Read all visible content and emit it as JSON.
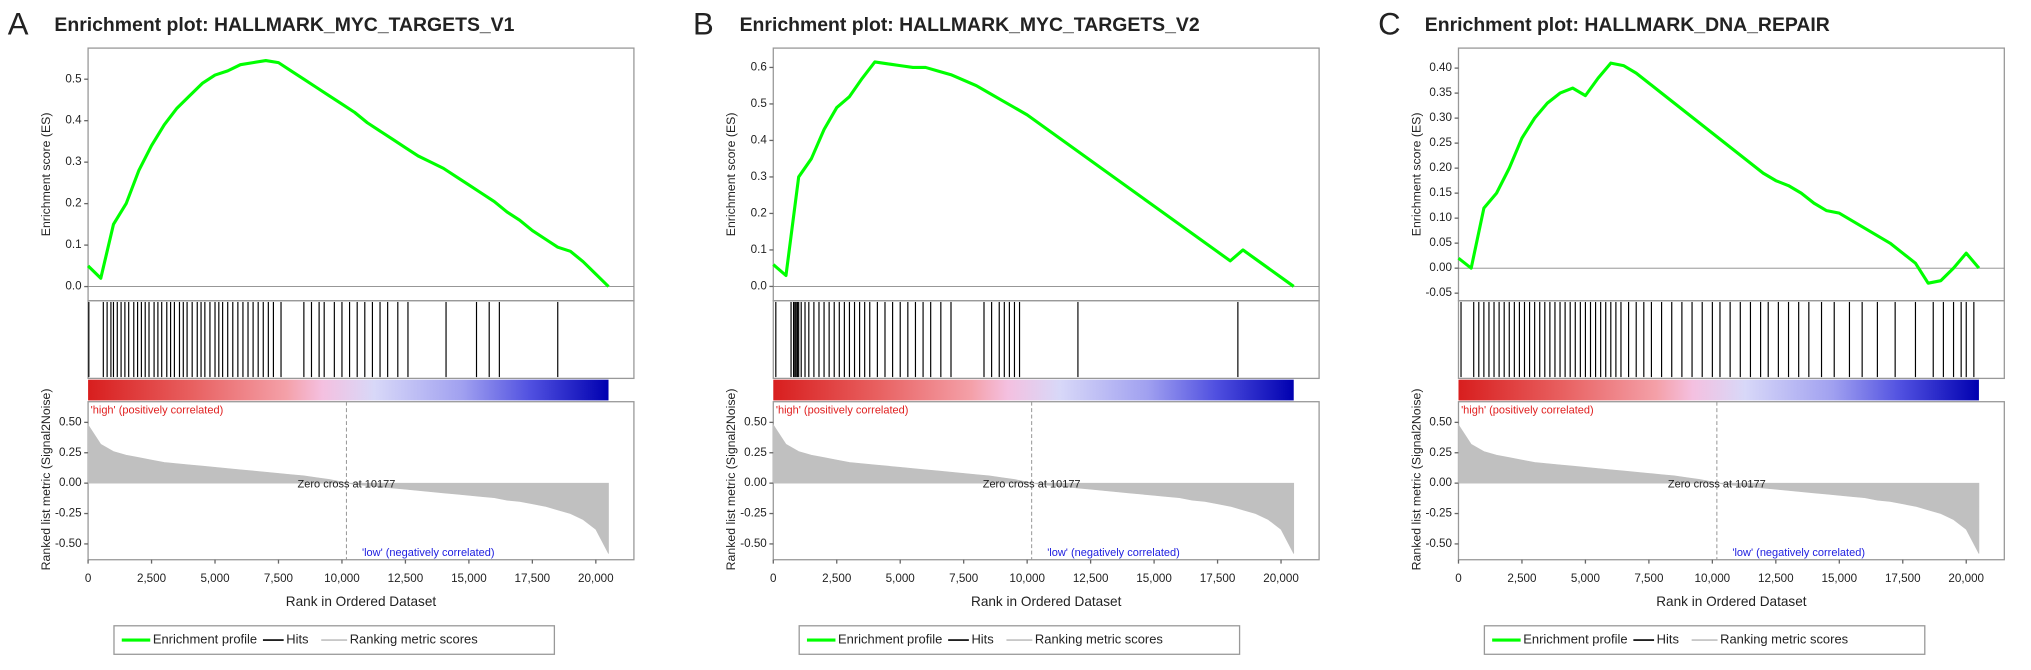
{
  "chart_data": [
    {
      "type": "gsea",
      "panel": "A",
      "title": "Enrichment plot: HALLMARK_MYC_TARGETS_V1",
      "x": [
        0,
        500,
        1000,
        1500,
        2000,
        2500,
        3000,
        3500,
        4000,
        4500,
        5000,
        5500,
        6000,
        6500,
        7000,
        7500,
        8000,
        8500,
        9000,
        9500,
        10000,
        10500,
        11000,
        11500,
        12000,
        12500,
        13000,
        13500,
        14000,
        14500,
        15000,
        15500,
        16000,
        16500,
        17000,
        17500,
        18000,
        18500,
        19000,
        19500,
        20000,
        20500
      ],
      "series": [
        {
          "name": "Enrichment profile",
          "color": "#00ff00",
          "values": [
            0.05,
            0.02,
            0.15,
            0.2,
            0.28,
            0.34,
            0.39,
            0.43,
            0.46,
            0.49,
            0.51,
            0.52,
            0.535,
            0.54,
            0.545,
            0.54,
            0.52,
            0.5,
            0.48,
            0.46,
            0.44,
            0.42,
            0.395,
            0.375,
            0.355,
            0.335,
            0.315,
            0.3,
            0.285,
            0.265,
            0.245,
            0.225,
            0.205,
            0.18,
            0.16,
            0.135,
            0.115,
            0.095,
            0.085,
            0.06,
            0.03,
            0.0
          ]
        }
      ],
      "ylabel": "Enrichment score (ES)",
      "ylim": [
        -0.034,
        0.575
      ],
      "yticks": [
        {
          "value": 0,
          "label": "0.0"
        },
        0.1,
        0.2,
        0.3,
        0.4,
        0.5
      ],
      "hits": {
        "name": "Hits",
        "color": "#000000",
        "x": [
          30,
          600,
          750,
          900,
          1000,
          1150,
          1300,
          1450,
          1600,
          1800,
          1950,
          2100,
          2250,
          2400,
          2600,
          2750,
          2900,
          3100,
          3250,
          3400,
          3600,
          3750,
          3900,
          4100,
          4300,
          4450,
          4600,
          4800,
          5000,
          5150,
          5300,
          5500,
          5700,
          5900,
          6100,
          6300,
          6500,
          6700,
          6900,
          7100,
          7300,
          7600,
          8500,
          8800,
          9100,
          9300,
          9700,
          10000,
          10300,
          10600,
          10900,
          11200,
          11500,
          11800,
          12200,
          12600,
          14100,
          15300,
          15800,
          16200,
          18500
        ]
      },
      "metric": {
        "name": "Ranking metric scores",
        "color": "#c0c0c0",
        "x": [
          0,
          500,
          1000,
          1500,
          2000,
          2500,
          3000,
          3500,
          4000,
          4500,
          5000,
          5500,
          6000,
          6500,
          7000,
          7500,
          8000,
          8500,
          9000,
          9500,
          10000,
          10500,
          11000,
          11500,
          12000,
          12500,
          13000,
          13500,
          14000,
          14500,
          15000,
          15500,
          16000,
          16500,
          17000,
          17500,
          18000,
          18500,
          19000,
          19500,
          20000,
          20500
        ],
        "values": [
          0.48,
          0.32,
          0.26,
          0.23,
          0.21,
          0.19,
          0.17,
          0.16,
          0.15,
          0.14,
          0.13,
          0.12,
          0.11,
          0.1,
          0.09,
          0.08,
          0.07,
          0.06,
          0.045,
          0.03,
          0.01,
          -0.01,
          -0.02,
          -0.03,
          -0.04,
          -0.05,
          -0.06,
          -0.07,
          -0.08,
          -0.09,
          -0.1,
          -0.11,
          -0.12,
          -0.14,
          -0.15,
          -0.17,
          -0.19,
          -0.22,
          -0.25,
          -0.3,
          -0.38,
          -0.58
        ],
        "ylabel": "Ranked list metric (Signal2Noise)",
        "ylim": [
          -0.63,
          0.67
        ],
        "yticks": [
          {
            "value": 0.5,
            "label": "0.50"
          },
          {
            "value": 0.25,
            "label": "0.25"
          },
          {
            "value": 0,
            "label": "0.00"
          },
          {
            "value": -0.25,
            "label": "-0.25"
          },
          {
            "value": -0.5,
            "label": "-0.50"
          }
        ]
      },
      "xlabel": "Rank in Ordered Dataset",
      "xlim": [
        0,
        21500
      ],
      "xticks": [
        0,
        {
          "value": 2500,
          "label": "2,500"
        },
        {
          "value": 5000,
          "label": "5,000"
        },
        {
          "value": 7500,
          "label": "7,500"
        },
        {
          "value": 10000,
          "label": "10,000"
        },
        {
          "value": 12500,
          "label": "12,500"
        },
        {
          "value": 15000,
          "label": "15,000"
        },
        {
          "value": 17500,
          "label": "17,500"
        },
        {
          "value": 20000,
          "label": "20,000"
        }
      ],
      "high_label": "'high' (positively correlated)",
      "low_label": "'low' (negatively correlated)",
      "zero_cross_label": "Zero cross at 10177",
      "zero_cross": 10177
    },
    {
      "type": "gsea",
      "panel": "B",
      "title": "Enrichment plot: HALLMARK_MYC_TARGETS_V2",
      "x": [
        0,
        500,
        1000,
        1500,
        2000,
        2500,
        3000,
        3500,
        4000,
        4500,
        5000,
        5500,
        6000,
        6500,
        7000,
        7500,
        8000,
        8500,
        9000,
        9500,
        10000,
        10500,
        11000,
        11500,
        12000,
        12500,
        13000,
        13500,
        14000,
        14500,
        15000,
        15500,
        16000,
        16500,
        17000,
        17500,
        18000,
        18500,
        19000,
        19500,
        20000,
        20500
      ],
      "series": [
        {
          "name": "Enrichment profile",
          "color": "#00ff00",
          "values": [
            0.06,
            0.03,
            0.3,
            0.35,
            0.43,
            0.49,
            0.52,
            0.57,
            0.615,
            0.61,
            0.605,
            0.6,
            0.6,
            0.59,
            0.58,
            0.565,
            0.55,
            0.53,
            0.51,
            0.49,
            0.47,
            0.445,
            0.42,
            0.395,
            0.37,
            0.345,
            0.32,
            0.295,
            0.27,
            0.245,
            0.22,
            0.195,
            0.17,
            0.145,
            0.12,
            0.095,
            0.07,
            0.1,
            0.075,
            0.05,
            0.025,
            0.0
          ]
        }
      ],
      "ylabel": "Enrichment score (ES)",
      "ylim": [
        -0.039,
        0.653
      ],
      "yticks": [
        {
          "value": 0,
          "label": "0.0"
        },
        0.1,
        0.2,
        0.3,
        0.4,
        0.5,
        0.6
      ],
      "hits": {
        "name": "Hits",
        "color": "#000000",
        "x": [
          100,
          700,
          800,
          850,
          900,
          950,
          1000,
          1100,
          1250,
          1400,
          1600,
          1800,
          2000,
          2200,
          2400,
          2600,
          2800,
          3000,
          3200,
          3400,
          3600,
          3800,
          4100,
          4400,
          4700,
          5000,
          5300,
          5600,
          5900,
          6200,
          6600,
          7000,
          8300,
          8600,
          8900,
          9100,
          9300,
          9500,
          9700,
          12000,
          18300
        ]
      },
      "metric": {
        "name": "Ranking metric scores",
        "color": "#c0c0c0",
        "x": [
          0,
          500,
          1000,
          1500,
          2000,
          2500,
          3000,
          3500,
          4000,
          4500,
          5000,
          5500,
          6000,
          6500,
          7000,
          7500,
          8000,
          8500,
          9000,
          9500,
          10000,
          10500,
          11000,
          11500,
          12000,
          12500,
          13000,
          13500,
          14000,
          14500,
          15000,
          15500,
          16000,
          16500,
          17000,
          17500,
          18000,
          18500,
          19000,
          19500,
          20000,
          20500
        ],
        "values": [
          0.48,
          0.32,
          0.26,
          0.23,
          0.21,
          0.19,
          0.17,
          0.16,
          0.15,
          0.14,
          0.13,
          0.12,
          0.11,
          0.1,
          0.09,
          0.08,
          0.07,
          0.06,
          0.045,
          0.03,
          0.01,
          -0.01,
          -0.02,
          -0.03,
          -0.04,
          -0.05,
          -0.06,
          -0.07,
          -0.08,
          -0.09,
          -0.1,
          -0.11,
          -0.12,
          -0.14,
          -0.15,
          -0.17,
          -0.19,
          -0.22,
          -0.25,
          -0.3,
          -0.38,
          -0.58
        ],
        "ylabel": "Ranked list metric (Signal2Noise)",
        "ylim": [
          -0.63,
          0.67
        ],
        "yticks": [
          {
            "value": 0.5,
            "label": "0.50"
          },
          {
            "value": 0.25,
            "label": "0.25"
          },
          {
            "value": 0,
            "label": "0.00"
          },
          {
            "value": -0.25,
            "label": "-0.25"
          },
          {
            "value": -0.5,
            "label": "-0.50"
          }
        ]
      },
      "xlabel": "Rank in Ordered Dataset",
      "xlim": [
        0,
        21500
      ],
      "xticks": [
        0,
        {
          "value": 2500,
          "label": "2,500"
        },
        {
          "value": 5000,
          "label": "5,000"
        },
        {
          "value": 7500,
          "label": "7,500"
        },
        {
          "value": 10000,
          "label": "10,000"
        },
        {
          "value": 12500,
          "label": "12,500"
        },
        {
          "value": 15000,
          "label": "15,000"
        },
        {
          "value": 17500,
          "label": "17,500"
        },
        {
          "value": 20000,
          "label": "20,000"
        }
      ],
      "high_label": "'high' (positively correlated)",
      "low_label": "'low' (negatively correlated)",
      "zero_cross_label": "Zero cross at 10177",
      "zero_cross": 10177
    },
    {
      "type": "gsea",
      "panel": "C",
      "title": "Enrichment plot: HALLMARK_DNA_REPAIR",
      "x": [
        0,
        500,
        1000,
        1500,
        2000,
        2500,
        3000,
        3500,
        4000,
        4500,
        5000,
        5500,
        6000,
        6500,
        7000,
        7500,
        8000,
        8500,
        9000,
        9500,
        10000,
        10500,
        11000,
        11500,
        12000,
        12500,
        13000,
        13500,
        14000,
        14500,
        15000,
        15500,
        16000,
        16500,
        17000,
        17500,
        18000,
        18500,
        19000,
        19500,
        20000,
        20500
      ],
      "series": [
        {
          "name": "Enrichment profile",
          "color": "#00ff00",
          "values": [
            0.02,
            0.0,
            0.12,
            0.15,
            0.2,
            0.26,
            0.3,
            0.33,
            0.35,
            0.36,
            0.345,
            0.38,
            0.41,
            0.405,
            0.39,
            0.37,
            0.35,
            0.33,
            0.31,
            0.29,
            0.27,
            0.25,
            0.23,
            0.21,
            0.19,
            0.175,
            0.165,
            0.15,
            0.13,
            0.115,
            0.11,
            0.095,
            0.08,
            0.065,
            0.05,
            0.03,
            0.01,
            -0.03,
            -0.025,
            0.0,
            0.03,
            0.0
          ]
        }
      ],
      "ylabel": "Enrichment score (ES)",
      "ylim": [
        -0.065,
        0.44
      ],
      "yticks": [
        {
          "value": -0.05,
          "label": "-0.05"
        },
        {
          "value": 0,
          "label": "0.00"
        },
        {
          "value": 0.05,
          "label": "0.05"
        },
        {
          "value": 0.1,
          "label": "0.10"
        },
        {
          "value": 0.15,
          "label": "0.15"
        },
        {
          "value": 0.2,
          "label": "0.20"
        },
        {
          "value": 0.25,
          "label": "0.25"
        },
        {
          "value": 0.3,
          "label": "0.30"
        },
        {
          "value": 0.35,
          "label": "0.35"
        },
        {
          "value": 0.4,
          "label": "0.40"
        }
      ],
      "hits": {
        "name": "Hits",
        "color": "#000000",
        "x": [
          100,
          600,
          800,
          1000,
          1200,
          1400,
          1600,
          1800,
          2000,
          2200,
          2400,
          2600,
          2800,
          3000,
          3200,
          3400,
          3600,
          3800,
          4000,
          4200,
          4400,
          4600,
          4800,
          5000,
          5200,
          5400,
          5600,
          5800,
          6000,
          6200,
          6400,
          6700,
          7000,
          7300,
          7600,
          8000,
          8400,
          8800,
          9200,
          9600,
          10000,
          10300,
          10700,
          11100,
          11500,
          11900,
          12200,
          12600,
          13000,
          13400,
          13800,
          14300,
          14800,
          15400,
          15900,
          16500,
          17200,
          18000,
          18700,
          19100,
          19500,
          19800,
          20000,
          20300
        ]
      },
      "metric": {
        "name": "Ranking metric scores",
        "color": "#c0c0c0",
        "x": [
          0,
          500,
          1000,
          1500,
          2000,
          2500,
          3000,
          3500,
          4000,
          4500,
          5000,
          5500,
          6000,
          6500,
          7000,
          7500,
          8000,
          8500,
          9000,
          9500,
          10000,
          10500,
          11000,
          11500,
          12000,
          12500,
          13000,
          13500,
          14000,
          14500,
          15000,
          15500,
          16000,
          16500,
          17000,
          17500,
          18000,
          18500,
          19000,
          19500,
          20000,
          20500
        ],
        "values": [
          0.48,
          0.32,
          0.26,
          0.23,
          0.21,
          0.19,
          0.17,
          0.16,
          0.15,
          0.14,
          0.13,
          0.12,
          0.11,
          0.1,
          0.09,
          0.08,
          0.07,
          0.06,
          0.045,
          0.03,
          0.01,
          -0.01,
          -0.02,
          -0.03,
          -0.04,
          -0.05,
          -0.06,
          -0.07,
          -0.08,
          -0.09,
          -0.1,
          -0.11,
          -0.12,
          -0.14,
          -0.15,
          -0.17,
          -0.19,
          -0.22,
          -0.25,
          -0.3,
          -0.38,
          -0.58
        ],
        "ylabel": "Ranked list metric (Signal2Noise)",
        "ylim": [
          -0.63,
          0.67
        ],
        "yticks": [
          {
            "value": 0.5,
            "label": "0.50"
          },
          {
            "value": 0.25,
            "label": "0.25"
          },
          {
            "value": 0,
            "label": "0.00"
          },
          {
            "value": -0.25,
            "label": "-0.25"
          },
          {
            "value": -0.5,
            "label": "-0.50"
          }
        ]
      },
      "xlabel": "Rank in Ordered Dataset",
      "xlim": [
        0,
        21500
      ],
      "xticks": [
        0,
        {
          "value": 2500,
          "label": "2,500"
        },
        {
          "value": 5000,
          "label": "5,000"
        },
        {
          "value": 7500,
          "label": "7,500"
        },
        {
          "value": 10000,
          "label": "10,000"
        },
        {
          "value": 12500,
          "label": "12,500"
        },
        {
          "value": 15000,
          "label": "15,000"
        },
        {
          "value": 17500,
          "label": "17,500"
        },
        {
          "value": 20000,
          "label": "20,000"
        }
      ],
      "high_label": "'high' (positively correlated)",
      "low_label": "'low' (negatively correlated)",
      "zero_cross_label": "Zero cross at 10177",
      "zero_cross": 10177
    }
  ]
}
